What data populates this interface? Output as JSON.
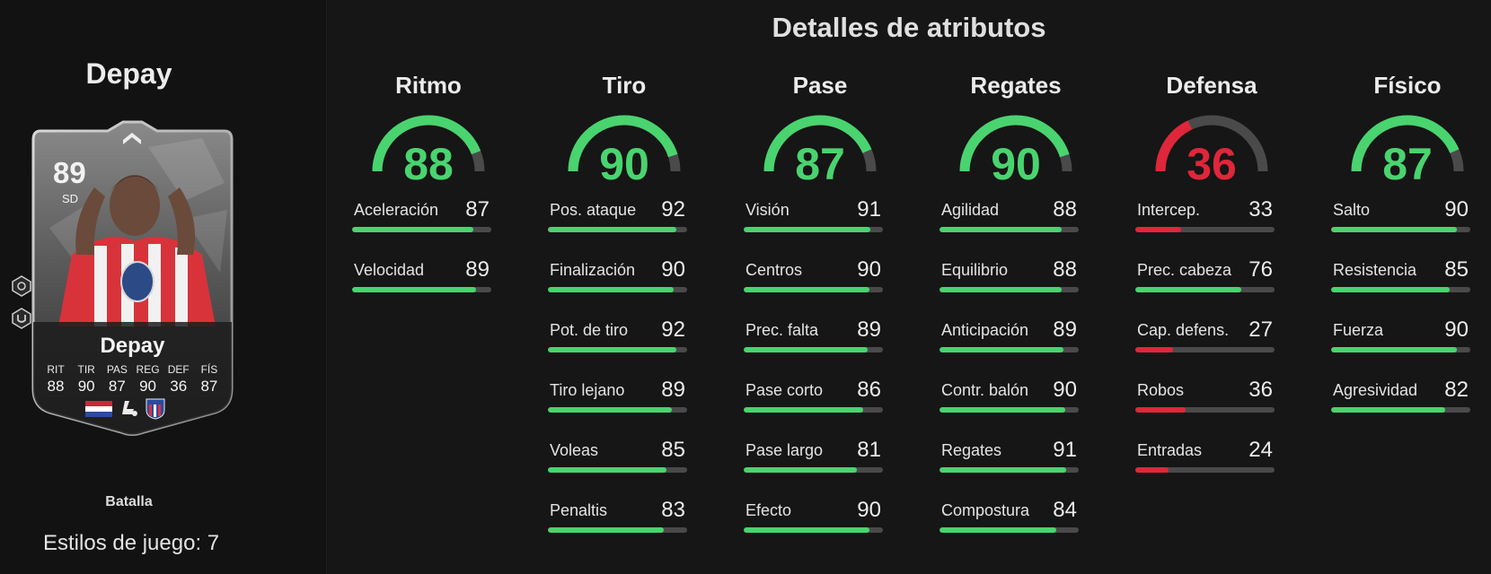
{
  "title": "Detalles de atributos",
  "player": {
    "name": "Depay",
    "card_name": "Depay",
    "rating": "89",
    "position": "SD",
    "card_stats": [
      {
        "label": "RIT",
        "value": "88"
      },
      {
        "label": "TIR",
        "value": "90"
      },
      {
        "label": "PAS",
        "value": "87"
      },
      {
        "label": "REG",
        "value": "90"
      },
      {
        "label": "DEF",
        "value": "36"
      },
      {
        "label": "FÍS",
        "value": "87"
      }
    ],
    "nation_icon": "netherlands-flag-icon",
    "league_icon": "laliga-icon",
    "club_icon": "atletico-madrid-crest-icon",
    "style": "Batalla",
    "styles_count": "Estilos de juego: 7"
  },
  "colors": {
    "green": "#49d46f",
    "red": "#e0263a",
    "track": "#4a4a4a"
  },
  "categories": [
    {
      "name": "Ritmo",
      "value": 88,
      "attributes": [
        {
          "name": "Aceleración",
          "value": 87
        },
        {
          "name": "Velocidad",
          "value": 89
        }
      ]
    },
    {
      "name": "Tiro",
      "value": 90,
      "attributes": [
        {
          "name": "Pos. ataque",
          "value": 92
        },
        {
          "name": "Finalización",
          "value": 90
        },
        {
          "name": "Pot. de tiro",
          "value": 92
        },
        {
          "name": "Tiro lejano",
          "value": 89
        },
        {
          "name": "Voleas",
          "value": 85
        },
        {
          "name": "Penaltis",
          "value": 83
        }
      ]
    },
    {
      "name": "Pase",
      "value": 87,
      "attributes": [
        {
          "name": "Visión",
          "value": 91
        },
        {
          "name": "Centros",
          "value": 90
        },
        {
          "name": "Prec. falta",
          "value": 89
        },
        {
          "name": "Pase corto",
          "value": 86
        },
        {
          "name": "Pase largo",
          "value": 81
        },
        {
          "name": "Efecto",
          "value": 90
        }
      ]
    },
    {
      "name": "Regates",
      "value": 90,
      "attributes": [
        {
          "name": "Agilidad",
          "value": 88
        },
        {
          "name": "Equilibrio",
          "value": 88
        },
        {
          "name": "Anticipación",
          "value": 89
        },
        {
          "name": "Contr. balón",
          "value": 90
        },
        {
          "name": "Regates",
          "value": 91
        },
        {
          "name": "Compostura",
          "value": 84
        }
      ]
    },
    {
      "name": "Defensa",
      "value": 36,
      "attributes": [
        {
          "name": "Intercep.",
          "value": 33
        },
        {
          "name": "Prec. cabeza",
          "value": 76
        },
        {
          "name": "Cap. defens.",
          "value": 27
        },
        {
          "name": "Robos",
          "value": 36
        },
        {
          "name": "Entradas",
          "value": 24
        }
      ]
    },
    {
      "name": "Físico",
      "value": 87,
      "attributes": [
        {
          "name": "Salto",
          "value": 90
        },
        {
          "name": "Resistencia",
          "value": 85
        },
        {
          "name": "Fuerza",
          "value": 90
        },
        {
          "name": "Agresividad",
          "value": 82
        }
      ]
    }
  ]
}
